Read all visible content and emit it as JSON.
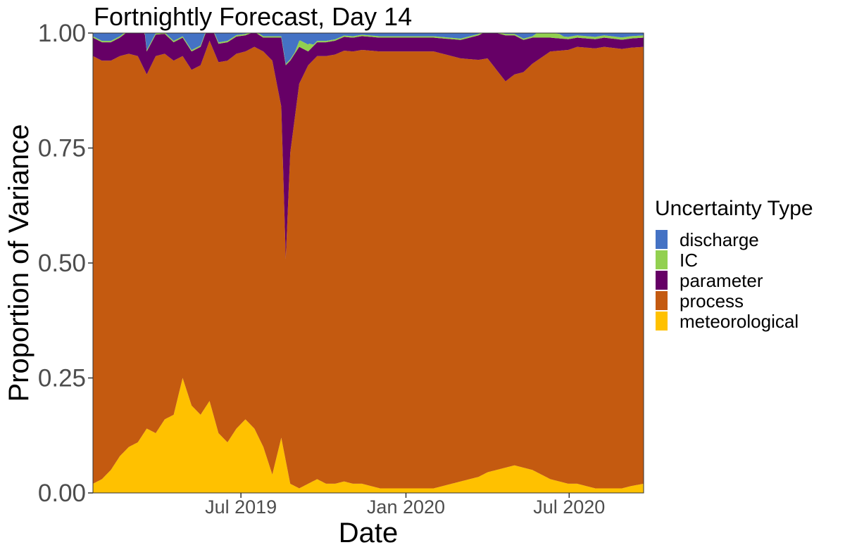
{
  "chart_data": {
    "type": "area",
    "stacked": true,
    "normalized": true,
    "title": "Fortnightly Forecast, Day 14",
    "xlabel": "Date",
    "ylabel": "Proportion of Variance",
    "x_range": [
      "2019-01-17",
      "2020-09-22"
    ],
    "ylim": [
      0,
      1
    ],
    "y_ticks": [
      {
        "value": 0.0,
        "label": "0.00"
      },
      {
        "value": 0.25,
        "label": "0.25"
      },
      {
        "value": 0.5,
        "label": "0.50"
      },
      {
        "value": 0.75,
        "label": "0.75"
      },
      {
        "value": 1.0,
        "label": "1.00"
      }
    ],
    "x_ticks": [
      {
        "value": "2019-07-01",
        "label": "Jul 2019"
      },
      {
        "value": "2020-01-01",
        "label": "Jan 2020"
      },
      {
        "value": "2020-07-01",
        "label": "Jul 2020"
      }
    ],
    "grid": false,
    "legend": {
      "title": "Uncertainty Type",
      "position": "right"
    },
    "stack_order": [
      "meteorological",
      "process",
      "parameter",
      "IC",
      "discharge"
    ],
    "legend_order": [
      "discharge",
      "IC",
      "parameter",
      "process",
      "meteorological"
    ],
    "series": [
      {
        "name": "meteorological",
        "color": "#FFC100",
        "values": [
          [
            "2019-01-17",
            0.02
          ],
          [
            "2019-01-27",
            0.03
          ],
          [
            "2019-02-06",
            0.05
          ],
          [
            "2019-02-16",
            0.08
          ],
          [
            "2019-02-26",
            0.1
          ],
          [
            "2019-03-08",
            0.11
          ],
          [
            "2019-03-18",
            0.14
          ],
          [
            "2019-03-28",
            0.13
          ],
          [
            "2019-04-07",
            0.16
          ],
          [
            "2019-04-17",
            0.17
          ],
          [
            "2019-04-27",
            0.25
          ],
          [
            "2019-05-07",
            0.19
          ],
          [
            "2019-05-17",
            0.17
          ],
          [
            "2019-05-27",
            0.2
          ],
          [
            "2019-06-06",
            0.13
          ],
          [
            "2019-06-16",
            0.11
          ],
          [
            "2019-06-26",
            0.14
          ],
          [
            "2019-07-06",
            0.16
          ],
          [
            "2019-07-16",
            0.14
          ],
          [
            "2019-07-26",
            0.1
          ],
          [
            "2019-08-05",
            0.04
          ],
          [
            "2019-08-15",
            0.12
          ],
          [
            "2019-08-25",
            0.02
          ],
          [
            "2019-09-04",
            0.01
          ],
          [
            "2019-09-14",
            0.02
          ],
          [
            "2019-09-24",
            0.03
          ],
          [
            "2019-10-04",
            0.02
          ],
          [
            "2019-10-14",
            0.02
          ],
          [
            "2019-10-24",
            0.025
          ],
          [
            "2019-11-03",
            0.02
          ],
          [
            "2019-11-13",
            0.02
          ],
          [
            "2019-11-23",
            0.015
          ],
          [
            "2019-12-03",
            0.01
          ],
          [
            "2019-12-13",
            0.01
          ],
          [
            "2019-12-23",
            0.01
          ],
          [
            "2020-01-02",
            0.01
          ],
          [
            "2020-01-12",
            0.01
          ],
          [
            "2020-01-22",
            0.01
          ],
          [
            "2020-02-01",
            0.01
          ],
          [
            "2020-02-11",
            0.015
          ],
          [
            "2020-02-21",
            0.02
          ],
          [
            "2020-03-02",
            0.025
          ],
          [
            "2020-03-12",
            0.03
          ],
          [
            "2020-03-22",
            0.035
          ],
          [
            "2020-04-01",
            0.045
          ],
          [
            "2020-04-11",
            0.05
          ],
          [
            "2020-04-21",
            0.055
          ],
          [
            "2020-05-01",
            0.06
          ],
          [
            "2020-05-11",
            0.055
          ],
          [
            "2020-05-21",
            0.05
          ],
          [
            "2020-05-31",
            0.04
          ],
          [
            "2020-06-10",
            0.03
          ],
          [
            "2020-06-20",
            0.025
          ],
          [
            "2020-06-30",
            0.02
          ],
          [
            "2020-07-10",
            0.02
          ],
          [
            "2020-07-20",
            0.015
          ],
          [
            "2020-07-30",
            0.01
          ],
          [
            "2020-08-09",
            0.01
          ],
          [
            "2020-08-19",
            0.01
          ],
          [
            "2020-08-29",
            0.01
          ],
          [
            "2020-09-08",
            0.015
          ],
          [
            "2020-09-22",
            0.02
          ]
        ]
      },
      {
        "name": "process",
        "color": "#C45A10",
        "values": [
          [
            "2019-01-17",
            0.93
          ],
          [
            "2019-02-16",
            0.87
          ],
          [
            "2019-03-08",
            0.84
          ],
          [
            "2019-03-18",
            0.77
          ],
          [
            "2019-03-28",
            0.82
          ],
          [
            "2019-04-17",
            0.77
          ],
          [
            "2019-04-27",
            0.7
          ],
          [
            "2019-05-17",
            0.76
          ],
          [
            "2019-06-16",
            0.83
          ],
          [
            "2019-07-06",
            0.8
          ],
          [
            "2019-07-26",
            0.86
          ],
          [
            "2019-08-05",
            0.9
          ],
          [
            "2019-08-15",
            0.72
          ],
          [
            "2019-08-20",
            0.44
          ],
          [
            "2019-08-25",
            0.72
          ],
          [
            "2019-09-04",
            0.88
          ],
          [
            "2019-09-14",
            0.91
          ],
          [
            "2019-10-04",
            0.93
          ],
          [
            "2019-11-03",
            0.94
          ],
          [
            "2019-12-03",
            0.95
          ],
          [
            "2020-01-02",
            0.95
          ],
          [
            "2020-02-01",
            0.95
          ],
          [
            "2020-03-02",
            0.92
          ],
          [
            "2020-04-01",
            0.9
          ],
          [
            "2020-04-21",
            0.84
          ],
          [
            "2020-05-11",
            0.86
          ],
          [
            "2020-06-10",
            0.93
          ],
          [
            "2020-07-10",
            0.95
          ],
          [
            "2020-08-09",
            0.96
          ],
          [
            "2020-09-22",
            0.95
          ]
        ]
      },
      {
        "name": "parameter",
        "color": "#660066",
        "values": [
          [
            "2019-01-17",
            0.04
          ],
          [
            "2019-02-16",
            0.04
          ],
          [
            "2019-03-08",
            0.06
          ],
          [
            "2019-03-13",
            0.12
          ],
          [
            "2019-03-18",
            0.05
          ],
          [
            "2019-04-17",
            0.04
          ],
          [
            "2019-06-16",
            0.04
          ],
          [
            "2019-07-26",
            0.03
          ],
          [
            "2019-08-05",
            0.05
          ],
          [
            "2019-08-15",
            0.15
          ],
          [
            "2019-08-20",
            0.42
          ],
          [
            "2019-08-25",
            0.2
          ],
          [
            "2019-09-04",
            0.08
          ],
          [
            "2019-09-14",
            0.03
          ],
          [
            "2019-10-04",
            0.03
          ],
          [
            "2019-11-03",
            0.03
          ],
          [
            "2019-12-03",
            0.03
          ],
          [
            "2020-01-02",
            0.03
          ],
          [
            "2020-02-01",
            0.03
          ],
          [
            "2020-03-02",
            0.04
          ],
          [
            "2020-04-01",
            0.06
          ],
          [
            "2020-04-21",
            0.1
          ],
          [
            "2020-05-11",
            0.07
          ],
          [
            "2020-06-10",
            0.03
          ],
          [
            "2020-07-10",
            0.02
          ],
          [
            "2020-08-09",
            0.02
          ],
          [
            "2020-09-22",
            0.02
          ]
        ]
      },
      {
        "name": "IC",
        "color": "#92D050",
        "values": [
          [
            "2019-01-17",
            0.003
          ],
          [
            "2019-08-30",
            0.003
          ],
          [
            "2019-09-05",
            0.015
          ],
          [
            "2019-09-15",
            0.015
          ],
          [
            "2019-09-20",
            0.003
          ],
          [
            "2020-05-21",
            0.003
          ],
          [
            "2020-05-26",
            0.01
          ],
          [
            "2020-06-20",
            0.01
          ],
          [
            "2020-06-25",
            0.005
          ],
          [
            "2020-09-22",
            0.005
          ]
        ]
      },
      {
        "name": "discharge",
        "color": "#4472C4",
        "values": [
          [
            "2019-01-17",
            0.003
          ],
          [
            "2020-09-22",
            0.003
          ]
        ]
      }
    ]
  }
}
